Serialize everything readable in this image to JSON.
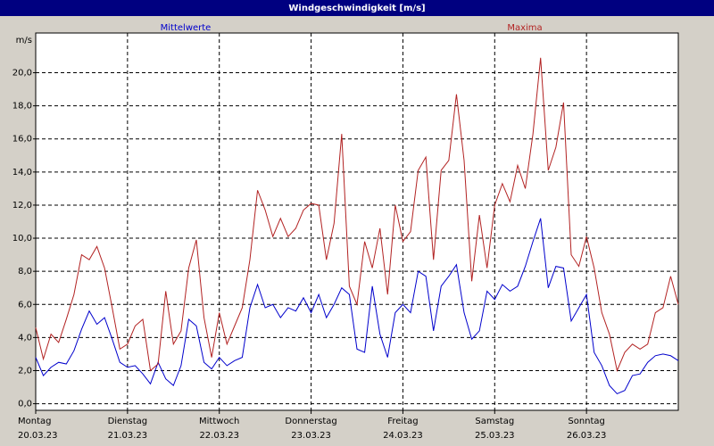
{
  "chart_data": {
    "type": "line",
    "title": "Windgeschwindigkeit [m/s]",
    "y_label": "m/s",
    "x": [
      0,
      2,
      4,
      6,
      8,
      10,
      12,
      14,
      16,
      18,
      20,
      22,
      24,
      26,
      28,
      30,
      32,
      34,
      36,
      38,
      40,
      42,
      44,
      46,
      48,
      50,
      52,
      54,
      56,
      58,
      60,
      62,
      64,
      66,
      68,
      70,
      72,
      74,
      76,
      78,
      80,
      82,
      84,
      86,
      88,
      90,
      92,
      94,
      96,
      98,
      100,
      102,
      104,
      106,
      108,
      110,
      112,
      114,
      116,
      118,
      120,
      122,
      124,
      126,
      128,
      130,
      132,
      134,
      136,
      138,
      140,
      142,
      144,
      146,
      148,
      150,
      152,
      154,
      156,
      158,
      160,
      162,
      164,
      166,
      168
    ],
    "xlim": [
      0,
      168
    ],
    "xticks": [
      {
        "value": 0,
        "label": "Montag",
        "date": "20.03.23"
      },
      {
        "value": 24,
        "label": "Dienstag",
        "date": "21.03.23"
      },
      {
        "value": 48,
        "label": "Mittwoch",
        "date": "22.03.23"
      },
      {
        "value": 72,
        "label": "Donnerstag",
        "date": "23.03.23"
      },
      {
        "value": 96,
        "label": "Freitag",
        "date": "24.03.23"
      },
      {
        "value": 120,
        "label": "Samstag",
        "date": "25.03.23"
      },
      {
        "value": 144,
        "label": "Sonntag",
        "date": "26.03.23"
      }
    ],
    "ylim": [
      -0.4,
      22.4
    ],
    "yticks": [
      {
        "value": 0,
        "label": "0,0"
      },
      {
        "value": 2,
        "label": "2,0"
      },
      {
        "value": 4,
        "label": "4,0"
      },
      {
        "value": 6,
        "label": "6,0"
      },
      {
        "value": 8,
        "label": "8,0"
      },
      {
        "value": 10,
        "label": "10,0"
      },
      {
        "value": 12,
        "label": "12,0"
      },
      {
        "value": 14,
        "label": "14,0"
      },
      {
        "value": 16,
        "label": "16,0"
      },
      {
        "value": 18,
        "label": "18,0"
      },
      {
        "value": 20,
        "label": "20,0"
      }
    ],
    "grid": true,
    "series": [
      {
        "name": "Mittelwerte",
        "color": "#0000cc",
        "values": [
          2.8,
          1.7,
          2.2,
          2.5,
          2.4,
          3.2,
          4.5,
          5.6,
          4.8,
          5.2,
          3.9,
          2.5,
          2.2,
          2.3,
          1.8,
          1.2,
          2.5,
          1.5,
          1.1,
          2.3,
          5.1,
          4.7,
          2.5,
          2.1,
          2.8,
          2.3,
          2.6,
          2.8,
          5.8,
          7.2,
          5.8,
          6.0,
          5.2,
          5.8,
          5.6,
          6.4,
          5.5,
          6.6,
          5.2,
          6.0,
          7.0,
          6.6,
          3.3,
          3.1,
          7.1,
          4.2,
          2.8,
          5.5,
          6.0,
          5.5,
          8.0,
          7.7,
          4.4,
          7.1,
          7.7,
          8.4,
          5.5,
          3.9,
          4.4,
          6.8,
          6.3,
          7.2,
          6.8,
          7.1,
          8.3,
          9.8,
          11.2,
          7.0,
          8.3,
          8.2,
          5.0,
          5.8,
          6.6,
          3.1,
          2.3,
          1.1,
          0.6,
          0.8,
          1.7,
          1.8,
          2.5,
          2.9,
          3.0,
          2.9,
          2.6
        ]
      },
      {
        "name": "Maxima",
        "color": "#b22222",
        "values": [
          4.6,
          2.7,
          4.2,
          3.7,
          5.1,
          6.6,
          9.0,
          8.7,
          9.5,
          8.2,
          5.8,
          3.3,
          3.6,
          4.7,
          5.1,
          2.0,
          2.4,
          6.8,
          3.6,
          4.4,
          8.2,
          9.9,
          5.2,
          2.8,
          5.5,
          3.6,
          4.7,
          5.8,
          8.7,
          12.9,
          11.7,
          10.1,
          11.2,
          10.1,
          10.6,
          11.7,
          12.1,
          12.0,
          8.7,
          10.9,
          16.3,
          7.1,
          6.0,
          9.8,
          8.2,
          10.6,
          6.6,
          12.0,
          9.8,
          10.4,
          14.1,
          14.9,
          8.7,
          14.1,
          14.7,
          18.7,
          14.7,
          7.4,
          11.4,
          8.2,
          12.0,
          13.3,
          12.2,
          14.4,
          13.0,
          16.3,
          20.9,
          14.1,
          15.5,
          18.2,
          9.0,
          8.3,
          10.1,
          8.2,
          5.5,
          4.2,
          2.0,
          3.1,
          3.6,
          3.3,
          3.6,
          5.5,
          5.8,
          7.7,
          6.0
        ]
      }
    ]
  }
}
